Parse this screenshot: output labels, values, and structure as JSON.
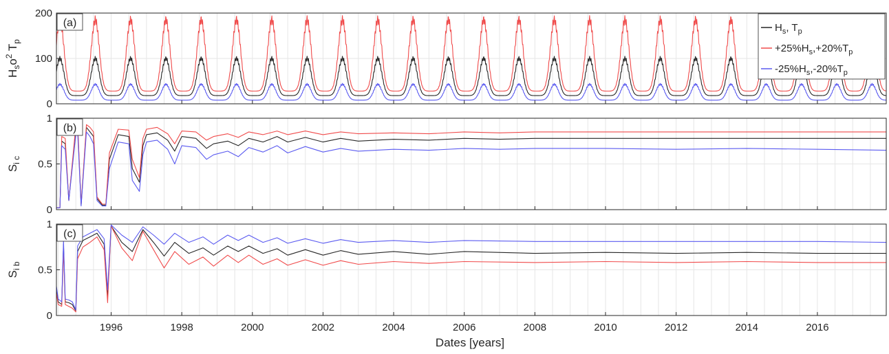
{
  "figure": {
    "xlabel": "Dates [years]",
    "x_ticks": [
      "1996",
      "1998",
      "2000",
      "2002",
      "2004",
      "2006",
      "2008",
      "2010",
      "2012",
      "2014",
      "2016"
    ]
  },
  "colors": {
    "base": "#262626",
    "plus": "#f04a4a",
    "minus": "#5a5af0",
    "grid": "#e6e6e6",
    "frame": "#262626"
  },
  "chart_data": [
    {
      "type": "line",
      "panel_label": "(a)",
      "ylabel": {
        "main": "H",
        "sub1": "s",
        "mid": "o",
        "sup": "2",
        "mid2": " T",
        "sub2": "p"
      },
      "xlim": [
        1994.45,
        2017.95
      ],
      "ylim": [
        0,
        200
      ],
      "y_ticks": [
        "0",
        "100",
        "200"
      ],
      "grid": "on",
      "legend_position": "top-right",
      "legend": [
        {
          "key": "base",
          "parts": [
            [
              "H",
              ""
            ],
            [
              "s",
              "sub"
            ],
            [
              ", T",
              ""
            ],
            [
              "p",
              "sub"
            ]
          ]
        },
        {
          "key": "plus",
          "parts": [
            [
              "+25%H",
              ""
            ],
            [
              "s",
              "sub"
            ],
            [
              ",+20%T",
              ""
            ],
            [
              "p",
              "sub"
            ]
          ]
        },
        {
          "key": "minus",
          "parts": [
            [
              "-25%H",
              ""
            ],
            [
              "s",
              "sub"
            ],
            [
              ",-20%T",
              ""
            ],
            [
              "p",
              "sub"
            ]
          ]
        }
      ],
      "series": [
        {
          "key": "base",
          "seasonal": {
            "min": 18,
            "max": 100,
            "peak_phase": 0.55
          }
        },
        {
          "key": "plus",
          "seasonal": {
            "min": 28,
            "max": 185,
            "peak_phase": 0.55
          }
        },
        {
          "key": "minus",
          "seasonal": {
            "min": 8,
            "max": 43,
            "peak_phase": 0.55
          }
        }
      ]
    },
    {
      "type": "line",
      "panel_label": "(b)",
      "ylabel": {
        "main": "S",
        "sub1": "i c"
      },
      "xlim": [
        1994.45,
        2017.95
      ],
      "ylim": [
        0,
        1
      ],
      "y_ticks": [
        "0",
        "0.5",
        "1"
      ],
      "grid": "on",
      "series": [
        {
          "key": "base",
          "x": [
            1994.45,
            1994.55,
            1994.6,
            1994.7,
            1994.8,
            1995.0,
            1995.05,
            1995.15,
            1995.3,
            1995.4,
            1995.5,
            1995.6,
            1995.75,
            1995.85,
            1995.95,
            1996.2,
            1996.5,
            1996.6,
            1996.8,
            1996.9,
            1997.0,
            1997.3,
            1997.6,
            1997.8,
            1998.0,
            1998.4,
            1998.7,
            1998.9,
            1999.3,
            1999.6,
            1999.9,
            2000.3,
            2000.7,
            2001.0,
            2001.5,
            2002.0,
            2002.5,
            2003.0,
            2004.0,
            2005.0,
            2006.0,
            2007.0,
            2008.0,
            2010.0,
            2012.0,
            2014.0,
            2016.0,
            2017.95
          ],
          "y": [
            0.02,
            0.02,
            0.75,
            0.72,
            0.1,
            0.88,
            0.92,
            0.05,
            0.9,
            0.85,
            0.8,
            0.12,
            0.05,
            0.05,
            0.55,
            0.82,
            0.8,
            0.45,
            0.3,
            0.7,
            0.82,
            0.84,
            0.76,
            0.64,
            0.8,
            0.78,
            0.67,
            0.72,
            0.75,
            0.7,
            0.78,
            0.74,
            0.8,
            0.74,
            0.79,
            0.74,
            0.78,
            0.75,
            0.77,
            0.76,
            0.78,
            0.77,
            0.78,
            0.78,
            0.78,
            0.78,
            0.78,
            0.78
          ]
        },
        {
          "key": "plus",
          "x": [
            1994.45,
            1994.55,
            1994.6,
            1994.7,
            1994.8,
            1995.0,
            1995.05,
            1995.15,
            1995.3,
            1995.4,
            1995.5,
            1995.6,
            1995.75,
            1995.85,
            1995.95,
            1996.2,
            1996.5,
            1996.6,
            1996.8,
            1996.9,
            1997.0,
            1997.3,
            1997.6,
            1997.8,
            1998.0,
            1998.4,
            1998.7,
            1998.9,
            1999.3,
            1999.6,
            1999.9,
            2000.3,
            2000.7,
            2001.0,
            2001.5,
            2002.0,
            2002.5,
            2003.0,
            2004.0,
            2005.0,
            2006.0,
            2007.0,
            2008.0,
            2010.0,
            2012.0,
            2014.0,
            2016.0,
            2017.95
          ],
          "y": [
            0.02,
            0.02,
            0.8,
            0.78,
            0.1,
            0.92,
            0.95,
            0.06,
            0.93,
            0.9,
            0.85,
            0.14,
            0.06,
            0.06,
            0.62,
            0.88,
            0.87,
            0.55,
            0.35,
            0.78,
            0.88,
            0.9,
            0.83,
            0.72,
            0.86,
            0.85,
            0.76,
            0.8,
            0.83,
            0.79,
            0.85,
            0.82,
            0.86,
            0.82,
            0.86,
            0.82,
            0.85,
            0.83,
            0.84,
            0.83,
            0.85,
            0.84,
            0.85,
            0.85,
            0.85,
            0.85,
            0.85,
            0.85
          ]
        },
        {
          "key": "minus",
          "x": [
            1994.45,
            1994.55,
            1994.6,
            1994.7,
            1994.8,
            1995.0,
            1995.05,
            1995.15,
            1995.3,
            1995.4,
            1995.5,
            1995.6,
            1995.75,
            1995.85,
            1995.95,
            1996.2,
            1996.5,
            1996.6,
            1996.8,
            1996.9,
            1997.0,
            1997.3,
            1997.6,
            1997.8,
            1998.0,
            1998.4,
            1998.7,
            1998.9,
            1999.3,
            1999.6,
            1999.9,
            2000.3,
            2000.7,
            2001.0,
            2001.5,
            2002.0,
            2002.5,
            2003.0,
            2004.0,
            2005.0,
            2006.0,
            2007.0,
            2008.0,
            2010.0,
            2012.0,
            2014.0,
            2016.0,
            2017.95
          ],
          "y": [
            0.02,
            0.02,
            0.7,
            0.66,
            0.1,
            0.82,
            0.85,
            0.04,
            0.85,
            0.8,
            0.72,
            0.1,
            0.04,
            0.04,
            0.45,
            0.74,
            0.72,
            0.32,
            0.2,
            0.6,
            0.74,
            0.76,
            0.66,
            0.5,
            0.7,
            0.68,
            0.55,
            0.6,
            0.64,
            0.58,
            0.68,
            0.63,
            0.7,
            0.62,
            0.69,
            0.63,
            0.67,
            0.64,
            0.66,
            0.65,
            0.67,
            0.66,
            0.67,
            0.67,
            0.66,
            0.67,
            0.66,
            0.65
          ]
        }
      ]
    },
    {
      "type": "line",
      "panel_label": "(c)",
      "ylabel": {
        "main": "S",
        "sub1": "i b"
      },
      "xlim": [
        1994.45,
        2017.95
      ],
      "ylim": [
        0,
        1
      ],
      "y_ticks": [
        "0",
        "0.5",
        "1"
      ],
      "grid": "on",
      "series": [
        {
          "key": "base",
          "x": [
            1994.45,
            1994.5,
            1994.6,
            1994.65,
            1994.7,
            1994.8,
            1994.9,
            1995.0,
            1995.05,
            1995.2,
            1995.4,
            1995.6,
            1995.8,
            1995.9,
            1996.0,
            1996.3,
            1996.6,
            1996.9,
            1997.2,
            1997.5,
            1997.8,
            1998.2,
            1998.6,
            1998.9,
            1999.3,
            1999.6,
            1999.9,
            2000.3,
            2000.7,
            2001.0,
            2001.5,
            2002.0,
            2002.5,
            2003.0,
            2004.0,
            2005.0,
            2006.0,
            2008.0,
            2010.0,
            2012.0,
            2014.0,
            2016.0,
            2017.95
          ],
          "y": [
            0.28,
            0.15,
            0.12,
            0.78,
            0.15,
            0.14,
            0.12,
            0.05,
            0.7,
            0.82,
            0.86,
            0.9,
            0.78,
            0.2,
            0.98,
            0.8,
            0.7,
            0.94,
            0.8,
            0.65,
            0.8,
            0.68,
            0.74,
            0.66,
            0.76,
            0.7,
            0.76,
            0.68,
            0.73,
            0.66,
            0.72,
            0.66,
            0.71,
            0.67,
            0.7,
            0.67,
            0.7,
            0.68,
            0.69,
            0.68,
            0.69,
            0.68,
            0.68
          ]
        },
        {
          "key": "plus",
          "x": [
            1994.45,
            1994.5,
            1994.6,
            1994.65,
            1994.7,
            1994.8,
            1994.9,
            1995.0,
            1995.05,
            1995.2,
            1995.4,
            1995.6,
            1995.8,
            1995.9,
            1996.0,
            1996.3,
            1996.6,
            1996.9,
            1997.2,
            1997.5,
            1997.8,
            1998.2,
            1998.6,
            1998.9,
            1999.3,
            1999.6,
            1999.9,
            2000.3,
            2000.7,
            2001.0,
            2001.5,
            2002.0,
            2002.5,
            2003.0,
            2004.0,
            2005.0,
            2006.0,
            2008.0,
            2010.0,
            2012.0,
            2014.0,
            2016.0,
            2017.95
          ],
          "y": [
            0.25,
            0.12,
            0.1,
            0.72,
            0.12,
            0.1,
            0.08,
            0.04,
            0.62,
            0.75,
            0.8,
            0.86,
            0.72,
            0.14,
            0.98,
            0.74,
            0.6,
            0.92,
            0.72,
            0.52,
            0.7,
            0.56,
            0.64,
            0.54,
            0.66,
            0.58,
            0.66,
            0.56,
            0.62,
            0.55,
            0.61,
            0.55,
            0.6,
            0.56,
            0.59,
            0.57,
            0.59,
            0.58,
            0.59,
            0.58,
            0.59,
            0.58,
            0.58
          ]
        },
        {
          "key": "minus",
          "x": [
            1994.45,
            1994.5,
            1994.6,
            1994.65,
            1994.7,
            1994.8,
            1994.9,
            1995.0,
            1995.05,
            1995.2,
            1995.4,
            1995.6,
            1995.8,
            1995.9,
            1996.0,
            1996.3,
            1996.6,
            1996.9,
            1997.2,
            1997.5,
            1997.8,
            1998.2,
            1998.6,
            1998.9,
            1999.3,
            1999.6,
            1999.9,
            2000.3,
            2000.7,
            2001.0,
            2001.5,
            2002.0,
            2002.5,
            2003.0,
            2004.0,
            2005.0,
            2006.0,
            2008.0,
            2010.0,
            2012.0,
            2014.0,
            2016.0,
            2017.95
          ],
          "y": [
            0.32,
            0.18,
            0.15,
            0.82,
            0.18,
            0.17,
            0.15,
            0.06,
            0.76,
            0.86,
            0.9,
            0.94,
            0.84,
            0.28,
            0.99,
            0.88,
            0.8,
            0.97,
            0.88,
            0.78,
            0.9,
            0.8,
            0.86,
            0.78,
            0.88,
            0.82,
            0.88,
            0.8,
            0.85,
            0.79,
            0.84,
            0.79,
            0.83,
            0.8,
            0.82,
            0.8,
            0.82,
            0.81,
            0.81,
            0.81,
            0.81,
            0.81,
            0.8
          ]
        }
      ]
    }
  ]
}
